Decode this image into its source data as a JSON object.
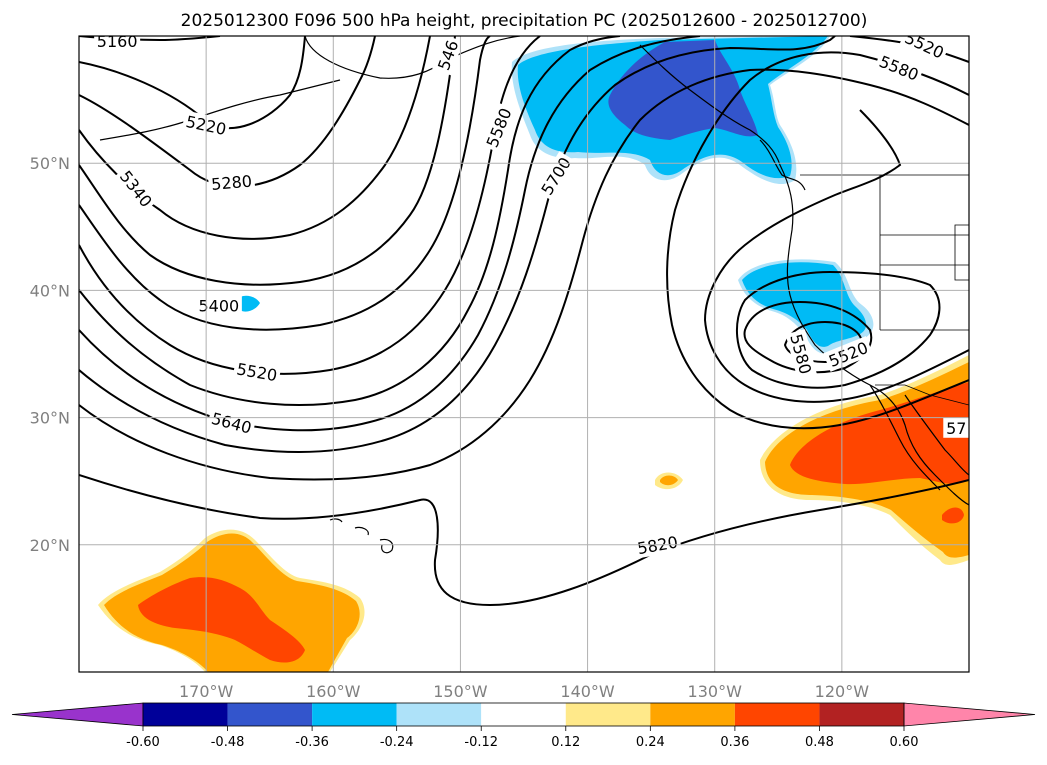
{
  "title": "2025012300 F096 500 hPa height, precipitation PC (2025012600 - 2025012700)",
  "map": {
    "lon_range": [
      -180,
      -110
    ],
    "lat_range": [
      10,
      60
    ],
    "lat_ticks": [
      {
        "value": 20,
        "label": "20°N"
      },
      {
        "value": 30,
        "label": "30°N"
      },
      {
        "value": 40,
        "label": "40°N"
      },
      {
        "value": 50,
        "label": "50°N"
      }
    ],
    "lon_ticks": [
      {
        "value": -170,
        "label": "170°W"
      },
      {
        "value": -160,
        "label": "160°W"
      },
      {
        "value": -150,
        "label": "150°W"
      },
      {
        "value": -140,
        "label": "140°W"
      },
      {
        "value": -130,
        "label": "130°W"
      },
      {
        "value": -120,
        "label": "120°W"
      }
    ],
    "grid": true
  },
  "contours": {
    "field": "500 hPa height",
    "labels": [
      {
        "text": "5160",
        "lon": -177,
        "lat": 59.6,
        "rot": 0
      },
      {
        "text": "5220",
        "lon": -170,
        "lat": 53.0,
        "rot": 12
      },
      {
        "text": "5280",
        "lon": -168,
        "lat": 48.5,
        "rot": -5
      },
      {
        "text": "5340",
        "lon": -175.5,
        "lat": 48.0,
        "rot": 52
      },
      {
        "text": "5400",
        "lon": -169,
        "lat": 38.8,
        "rot": 0
      },
      {
        "text": "5520",
        "lon": -166,
        "lat": 33.6,
        "rot": 10
      },
      {
        "text": "5640",
        "lon": -168,
        "lat": 29.6,
        "rot": 15
      },
      {
        "text": "546",
        "lon": -151,
        "lat": 58.5,
        "rot": -70
      },
      {
        "text": "5580",
        "lon": -147,
        "lat": 52.8,
        "rot": -68
      },
      {
        "text": "5700",
        "lon": -142.5,
        "lat": 49.0,
        "rot": -58
      },
      {
        "text": "5520",
        "lon": -113.5,
        "lat": 59.3,
        "rot": 25
      },
      {
        "text": "5580",
        "lon": -115.5,
        "lat": 57.5,
        "rot": 22
      },
      {
        "text": "5580",
        "lon": -123.2,
        "lat": 35.0,
        "rot": 75
      },
      {
        "text": "5520",
        "lon": -119.5,
        "lat": 35.0,
        "rot": -22
      },
      {
        "text": "57",
        "lon": -111,
        "lat": 29.2,
        "rot": 0
      },
      {
        "text": "5820",
        "lon": -134.5,
        "lat": 20.0,
        "rot": -10
      }
    ]
  },
  "colorbar": {
    "labels": [
      "-0.60",
      "-0.48",
      "-0.36",
      "-0.24",
      "-0.12",
      "0.12",
      "0.24",
      "0.36",
      "0.48",
      "0.60"
    ],
    "colors": [
      "#9933cc",
      "#000099",
      "#3355cc",
      "#00bbf5",
      "#aee2f9",
      "#ffffff",
      "#ffe98a",
      "#ffa500",
      "#ff4500",
      "#b22222",
      "#ff85aa"
    ],
    "extend": "both"
  }
}
